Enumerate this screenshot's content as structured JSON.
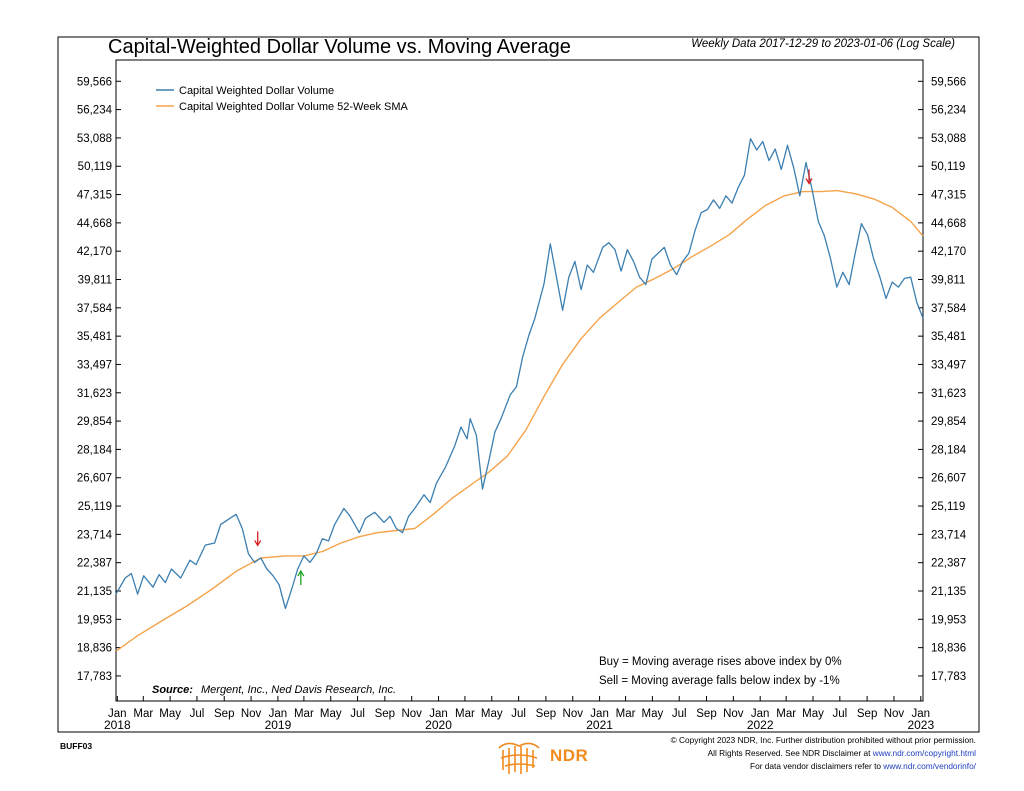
{
  "title": "Capital-Weighted Dollar Volume vs. Moving Average",
  "subtitle": "Weekly Data 2017-12-29 to 2023-01-06 (Log Scale)",
  "code": "BUFF03",
  "source_label": "Source:",
  "source_text": "Mergent, Inc., Ned Davis Research, Inc.",
  "note_buy": "Buy = Moving average rises above index by 0%",
  "note_sell": "Sell = Moving average falls below index by -1%",
  "copyright": {
    "line1": "© Copyright 2023 NDR, Inc. Further distribution prohibited without prior permission.",
    "line2_prefix": "All Rights Reserved. See NDR Disclaimer at ",
    "line2_link": "www.ndr.com/copyright.html",
    "line3_prefix": "For data vendor disclaimers refer to ",
    "line3_link": "www.ndr.com/vendorinfo/"
  },
  "brand": "NDR",
  "colors": {
    "series": "#3c7fb1",
    "sma": "#f5a34a",
    "sell_arrow": "#d42020",
    "buy_arrow": "#1fa51f",
    "brand": "#f28b1e"
  },
  "chart_data": {
    "type": "line",
    "title": "Capital-Weighted Dollar Volume vs. Moving Average",
    "yscale": "log",
    "ylim": [
      16900,
      62200
    ],
    "yticks": [
      59566,
      56234,
      53088,
      50119,
      47315,
      44668,
      42170,
      39811,
      37584,
      35481,
      33497,
      31623,
      29854,
      28184,
      26607,
      25119,
      23714,
      22387,
      21135,
      19953,
      18836,
      17783
    ],
    "ytick_labels": [
      "59,566",
      "56,234",
      "53,088",
      "50,119",
      "47,315",
      "44,668",
      "42,170",
      "39,811",
      "37,584",
      "35,481",
      "33,497",
      "31,623",
      "29,854",
      "28,184",
      "26,607",
      "25,119",
      "23,714",
      "22,387",
      "21,135",
      "19,953",
      "18,836",
      "17,783"
    ],
    "xlim": [
      "2017-12-29",
      "2023-01-06"
    ],
    "xticks": [
      "2018-01",
      "2018-03",
      "2018-05",
      "2018-07",
      "2018-09",
      "2018-11",
      "2019-01",
      "2019-03",
      "2019-05",
      "2019-07",
      "2019-09",
      "2019-11",
      "2020-01",
      "2020-03",
      "2020-05",
      "2020-07",
      "2020-09",
      "2020-11",
      "2021-01",
      "2021-03",
      "2021-05",
      "2021-07",
      "2021-09",
      "2021-11",
      "2022-01",
      "2022-03",
      "2022-05",
      "2022-07",
      "2022-09",
      "2022-11",
      "2023-01"
    ],
    "xtick_labels": [
      "Jan",
      "Mar",
      "May",
      "Jul",
      "Sep",
      "Nov",
      "Jan",
      "Mar",
      "May",
      "Jul",
      "Sep",
      "Nov",
      "Jan",
      "Mar",
      "May",
      "Jul",
      "Sep",
      "Nov",
      "Jan",
      "Mar",
      "May",
      "Jul",
      "Sep",
      "Nov",
      "Jan",
      "Mar",
      "May",
      "Jul",
      "Sep",
      "Nov",
      "Jan"
    ],
    "year_labels": [
      {
        "date": "2018-01",
        "label": "2018"
      },
      {
        "date": "2019-01",
        "label": "2019"
      },
      {
        "date": "2020-01",
        "label": "2020"
      },
      {
        "date": "2021-01",
        "label": "2021"
      },
      {
        "date": "2022-01",
        "label": "2022"
      },
      {
        "date": "2023-01",
        "label": "2023"
      }
    ],
    "legend_position": "top-left",
    "series": [
      {
        "name": "Capital Weighted Dollar Volume",
        "color": "#3c7fb1",
        "points": [
          [
            "2017-12-29",
            21000
          ],
          [
            "2018-01-19",
            21700
          ],
          [
            "2018-02-02",
            21900
          ],
          [
            "2018-02-16",
            21000
          ],
          [
            "2018-03-02",
            21800
          ],
          [
            "2018-03-23",
            21300
          ],
          [
            "2018-04-06",
            21850
          ],
          [
            "2018-04-20",
            21500
          ],
          [
            "2018-05-04",
            22100
          ],
          [
            "2018-05-25",
            21700
          ],
          [
            "2018-06-15",
            22500
          ],
          [
            "2018-06-29",
            22300
          ],
          [
            "2018-07-20",
            23200
          ],
          [
            "2018-08-10",
            23300
          ],
          [
            "2018-08-24",
            24200
          ],
          [
            "2018-09-14",
            24500
          ],
          [
            "2018-09-28",
            24700
          ],
          [
            "2018-10-12",
            24000
          ],
          [
            "2018-10-26",
            22800
          ],
          [
            "2018-11-09",
            22400
          ],
          [
            "2018-11-23",
            22600
          ],
          [
            "2018-12-07",
            22100
          ],
          [
            "2018-12-21",
            21800
          ],
          [
            "2019-01-04",
            21400
          ],
          [
            "2019-01-18",
            20400
          ],
          [
            "2019-02-01",
            21200
          ],
          [
            "2019-02-15",
            22100
          ],
          [
            "2019-03-01",
            22700
          ],
          [
            "2019-03-15",
            22400
          ],
          [
            "2019-03-29",
            22800
          ],
          [
            "2019-04-12",
            23500
          ],
          [
            "2019-04-26",
            23400
          ],
          [
            "2019-05-10",
            24200
          ],
          [
            "2019-05-31",
            25000
          ],
          [
            "2019-06-14",
            24600
          ],
          [
            "2019-07-05",
            23800
          ],
          [
            "2019-07-19",
            24500
          ],
          [
            "2019-08-09",
            24800
          ],
          [
            "2019-08-30",
            24300
          ],
          [
            "2019-09-13",
            24600
          ],
          [
            "2019-09-27",
            24000
          ],
          [
            "2019-10-11",
            23800
          ],
          [
            "2019-10-25",
            24600
          ],
          [
            "2019-11-08",
            25000
          ],
          [
            "2019-11-29",
            25700
          ],
          [
            "2019-12-13",
            25300
          ],
          [
            "2019-12-27",
            26300
          ],
          [
            "2020-01-17",
            27200
          ],
          [
            "2020-02-07",
            28400
          ],
          [
            "2020-02-21",
            29500
          ],
          [
            "2020-03-06",
            28800
          ],
          [
            "2020-03-13",
            30000
          ],
          [
            "2020-03-27",
            29000
          ],
          [
            "2020-04-10",
            26000
          ],
          [
            "2020-04-24",
            27500
          ],
          [
            "2020-05-08",
            29200
          ],
          [
            "2020-05-22",
            30000
          ],
          [
            "2020-06-12",
            31500
          ],
          [
            "2020-06-26",
            32000
          ],
          [
            "2020-07-10",
            34000
          ],
          [
            "2020-07-24",
            35500
          ],
          [
            "2020-08-07",
            36800
          ],
          [
            "2020-08-28",
            39500
          ],
          [
            "2020-09-11",
            42800
          ],
          [
            "2020-09-25",
            40000
          ],
          [
            "2020-10-09",
            37400
          ],
          [
            "2020-10-23",
            40000
          ],
          [
            "2020-11-06",
            41300
          ],
          [
            "2020-11-20",
            39000
          ],
          [
            "2020-12-04",
            41000
          ],
          [
            "2020-12-18",
            40400
          ],
          [
            "2021-01-08",
            42500
          ],
          [
            "2021-01-22",
            42900
          ],
          [
            "2021-02-05",
            42300
          ],
          [
            "2021-02-19",
            40500
          ],
          [
            "2021-03-05",
            42300
          ],
          [
            "2021-03-19",
            41300
          ],
          [
            "2021-04-02",
            40000
          ],
          [
            "2021-04-16",
            39400
          ],
          [
            "2021-04-30",
            41500
          ],
          [
            "2021-05-14",
            42000
          ],
          [
            "2021-05-28",
            42500
          ],
          [
            "2021-06-11",
            41000
          ],
          [
            "2021-06-25",
            40200
          ],
          [
            "2021-07-09",
            41300
          ],
          [
            "2021-07-23",
            42000
          ],
          [
            "2021-08-06",
            44000
          ],
          [
            "2021-08-20",
            45600
          ],
          [
            "2021-09-03",
            45900
          ],
          [
            "2021-09-17",
            46800
          ],
          [
            "2021-10-01",
            46000
          ],
          [
            "2021-10-15",
            47200
          ],
          [
            "2021-10-29",
            46500
          ],
          [
            "2021-11-12",
            48000
          ],
          [
            "2021-11-26",
            49200
          ],
          [
            "2021-12-10",
            53000
          ],
          [
            "2021-12-24",
            51800
          ],
          [
            "2022-01-07",
            52700
          ],
          [
            "2022-01-21",
            50700
          ],
          [
            "2022-02-04",
            51900
          ],
          [
            "2022-02-18",
            49800
          ],
          [
            "2022-03-04",
            52300
          ],
          [
            "2022-03-18",
            50000
          ],
          [
            "2022-04-01",
            47200
          ],
          [
            "2022-04-15",
            50500
          ],
          [
            "2022-04-29",
            47800
          ],
          [
            "2022-05-13",
            44800
          ],
          [
            "2022-05-27",
            43500
          ],
          [
            "2022-06-10",
            41500
          ],
          [
            "2022-06-24",
            39200
          ],
          [
            "2022-07-08",
            40400
          ],
          [
            "2022-07-22",
            39400
          ],
          [
            "2022-08-05",
            42000
          ],
          [
            "2022-08-19",
            44600
          ],
          [
            "2022-09-02",
            43600
          ],
          [
            "2022-09-16",
            41500
          ],
          [
            "2022-09-30",
            40000
          ],
          [
            "2022-10-14",
            38300
          ],
          [
            "2022-10-28",
            39600
          ],
          [
            "2022-11-11",
            39200
          ],
          [
            "2022-11-25",
            39900
          ],
          [
            "2022-12-09",
            40000
          ],
          [
            "2022-12-23",
            38000
          ],
          [
            "2023-01-06",
            36800
          ]
        ]
      },
      {
        "name": "Capital Weighted Dollar Volume 52-Week SMA",
        "color": "#f5a34a",
        "points": [
          [
            "2017-12-29",
            18700
          ],
          [
            "2018-02-16",
            19300
          ],
          [
            "2018-04-13",
            19900
          ],
          [
            "2018-06-08",
            20500
          ],
          [
            "2018-08-03",
            21200
          ],
          [
            "2018-09-28",
            22000
          ],
          [
            "2018-11-23",
            22600
          ],
          [
            "2019-01-18",
            22700
          ],
          [
            "2019-03-01",
            22700
          ],
          [
            "2019-04-12",
            22900
          ],
          [
            "2019-05-24",
            23300
          ],
          [
            "2019-07-05",
            23600
          ],
          [
            "2019-08-16",
            23800
          ],
          [
            "2019-09-27",
            23900
          ],
          [
            "2019-11-08",
            24000
          ],
          [
            "2019-12-20",
            24700
          ],
          [
            "2020-01-31",
            25500
          ],
          [
            "2020-03-13",
            26200
          ],
          [
            "2020-04-24",
            26900
          ],
          [
            "2020-06-05",
            27800
          ],
          [
            "2020-07-17",
            29300
          ],
          [
            "2020-08-28",
            31400
          ],
          [
            "2020-10-09",
            33500
          ],
          [
            "2020-11-20",
            35300
          ],
          [
            "2021-01-01",
            36800
          ],
          [
            "2021-02-12",
            38000
          ],
          [
            "2021-03-26",
            39200
          ],
          [
            "2021-05-07",
            39900
          ],
          [
            "2021-06-18",
            40700
          ],
          [
            "2021-07-30",
            41700
          ],
          [
            "2021-09-10",
            42600
          ],
          [
            "2021-10-22",
            43600
          ],
          [
            "2021-12-03",
            45000
          ],
          [
            "2022-01-14",
            46300
          ],
          [
            "2022-02-25",
            47200
          ],
          [
            "2022-04-08",
            47600
          ],
          [
            "2022-05-20",
            47600
          ],
          [
            "2022-06-24",
            47700
          ],
          [
            "2022-08-05",
            47400
          ],
          [
            "2022-09-16",
            46900
          ],
          [
            "2022-10-28",
            46100
          ],
          [
            "2022-12-09",
            44800
          ],
          [
            "2023-01-06",
            43500
          ]
        ]
      }
    ],
    "signals": [
      {
        "type": "sell",
        "date": "2018-11-16",
        "value": 23000
      },
      {
        "type": "buy",
        "date": "2019-02-22",
        "value": 22100
      },
      {
        "type": "sell",
        "date": "2022-04-22",
        "value": 48000
      }
    ]
  }
}
